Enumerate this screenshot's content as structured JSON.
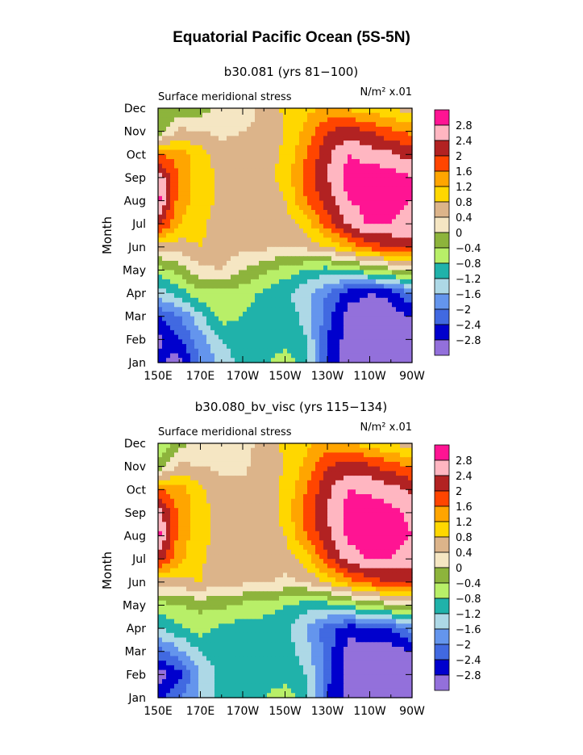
{
  "title": "Equatorial Pacific Ocean (5S-5N)",
  "chart_data": [
    {
      "type": "heatmap",
      "subtitle": "b30.081 (yrs 81−100)",
      "left_label": "Surface meridional stress",
      "units_label": "N/m² x.01",
      "ylabel": "Month",
      "x_ticks": [
        "150E",
        "170E",
        "170W",
        "150W",
        "130W",
        "110W",
        "90W"
      ],
      "x_range": [
        150,
        270
      ],
      "y_ticks": [
        "Jan",
        "Feb",
        "Mar",
        "Apr",
        "May",
        "Jun",
        "Jul",
        "Aug",
        "Sep",
        "Oct",
        "Nov",
        "Dec"
      ],
      "color_levels": [
        "2.8",
        "2.4",
        "2",
        "1.6",
        "1.2",
        "0.8",
        "0.4",
        "0",
        "−0.4",
        "−0.8",
        "−1.2",
        "−1.6",
        "−2",
        "−2.4",
        "−2.8"
      ],
      "x": [
        150,
        160,
        170,
        180,
        190,
        200,
        210,
        220,
        230,
        240,
        250,
        260,
        270
      ],
      "months": [
        1,
        2,
        3,
        4,
        5,
        6,
        7,
        8,
        9,
        10,
        11,
        12
      ],
      "values": [
        [
          -2.7,
          -3.0,
          -2.0,
          -1.5,
          -1.0,
          -0.9,
          -0.6,
          -1.0,
          -2.5,
          -3.0,
          -3.0,
          -3.0,
          -3.0
        ],
        [
          -2.9,
          -2.4,
          -1.8,
          -1.2,
          -1.0,
          -1.0,
          -1.0,
          -1.2,
          -2.4,
          -3.0,
          -3.0,
          -3.0,
          -3.0
        ],
        [
          -2.4,
          -2.0,
          -1.3,
          -0.6,
          -0.8,
          -1.0,
          -1.0,
          -1.3,
          -2.2,
          -3.0,
          -3.0,
          -3.0,
          -2.8
        ],
        [
          -1.4,
          -1.0,
          -0.5,
          -0.5,
          -0.6,
          -0.9,
          -1.1,
          -1.5,
          -2.0,
          -2.6,
          -2.8,
          -2.7,
          -2.0
        ],
        [
          -0.6,
          -0.2,
          0.3,
          0.4,
          0.0,
          -0.3,
          -0.6,
          -0.8,
          -1.0,
          -0.8,
          -0.5,
          -0.2,
          0.2
        ],
        [
          0.5,
          0.6,
          0.8,
          0.6,
          0.5,
          0.5,
          0.4,
          0.5,
          0.8,
          1.3,
          1.8,
          2.0,
          2.2
        ],
        [
          2.2,
          1.2,
          0.9,
          0.6,
          0.5,
          0.5,
          0.6,
          1.0,
          1.8,
          2.5,
          2.9,
          2.8,
          2.6
        ],
        [
          3.0,
          1.4,
          1.0,
          0.7,
          0.5,
          0.6,
          0.8,
          1.6,
          2.2,
          2.8,
          2.9,
          3.0,
          2.8
        ],
        [
          2.8,
          1.5,
          1.0,
          0.7,
          0.6,
          0.7,
          0.9,
          1.8,
          2.4,
          3.0,
          3.1,
          3.0,
          2.8
        ],
        [
          1.6,
          1.4,
          1.0,
          0.6,
          0.5,
          0.6,
          0.9,
          1.6,
          2.3,
          2.8,
          2.6,
          2.5,
          2.2
        ],
        [
          -0.3,
          0.5,
          0.4,
          0.3,
          0.4,
          0.5,
          0.8,
          1.3,
          2.0,
          2.2,
          2.0,
          1.7,
          1.5
        ],
        [
          -0.2,
          -0.3,
          -0.2,
          0.1,
          0.2,
          0.5,
          0.9,
          1.1,
          1.2,
          1.1,
          1.0,
          0.8,
          0.6
        ]
      ],
      "colors": {
        "-3": "#9370db",
        "-2.8": "#0000cd",
        "-2.4": "#4169e1",
        "-2": "#6495ed",
        "-1.6": "#add8e6",
        "-1.2": "#20b2aa",
        "-0.8": "#b8ef68",
        "-0.4": "#8db43c",
        "0": "#f5e6c3",
        "0.4": "#dcb48a",
        "0.8": "#ffd700",
        "1.2": "#ffa500",
        "1.6": "#ff4500",
        "2": "#b22222",
        "2.4": "#ffb6c1",
        "2.8": "#ff1493"
      }
    },
    {
      "type": "heatmap",
      "subtitle": "b30.080_bv_visc (yrs 115−134)",
      "left_label": "Surface meridional stress",
      "units_label": "N/m² x.01",
      "ylabel": "Month",
      "x_ticks": [
        "150E",
        "170E",
        "170W",
        "150W",
        "130W",
        "110W",
        "90W"
      ],
      "x_range": [
        150,
        270
      ],
      "y_ticks": [
        "Jan",
        "Feb",
        "Mar",
        "Apr",
        "May",
        "Jun",
        "Jul",
        "Aug",
        "Sep",
        "Oct",
        "Nov",
        "Dec"
      ],
      "color_levels": [
        "2.8",
        "2.4",
        "2",
        "1.6",
        "1.2",
        "0.8",
        "0.4",
        "0",
        "−0.4",
        "−0.8",
        "−1.2",
        "−1.6",
        "−2",
        "−2.4",
        "−2.8"
      ],
      "x": [
        150,
        160,
        170,
        180,
        190,
        200,
        210,
        220,
        230,
        240,
        250,
        260,
        270
      ],
      "months": [
        1,
        2,
        3,
        4,
        5,
        6,
        7,
        8,
        9,
        10,
        11,
        12
      ],
      "values": [
        [
          -2.6,
          -2.0,
          -1.5,
          -1.0,
          -0.9,
          -0.8,
          -0.6,
          -1.0,
          -2.4,
          -3.0,
          -3.0,
          -3.0,
          -3.0
        ],
        [
          -3.0,
          -2.6,
          -1.6,
          -1.0,
          -0.9,
          -0.9,
          -1.0,
          -1.2,
          -2.3,
          -3.0,
          -3.0,
          -3.0,
          -3.0
        ],
        [
          -2.2,
          -1.7,
          -1.2,
          -1.0,
          -1.0,
          -1.0,
          -1.0,
          -1.4,
          -2.2,
          -3.0,
          -3.0,
          -3.0,
          -2.8
        ],
        [
          -1.2,
          -0.9,
          -0.6,
          -0.9,
          -1.0,
          -1.0,
          -1.1,
          -1.6,
          -2.2,
          -2.6,
          -2.6,
          -2.4,
          -1.8
        ],
        [
          -0.6,
          -0.4,
          -0.3,
          -0.3,
          -0.5,
          -0.6,
          -0.8,
          -1.0,
          -1.0,
          -0.7,
          -0.4,
          -0.1,
          0.2
        ],
        [
          0.6,
          0.7,
          0.8,
          0.5,
          0.5,
          0.5,
          0.3,
          0.4,
          0.9,
          1.4,
          1.8,
          2.0,
          2.2
        ],
        [
          2.2,
          1.3,
          0.9,
          0.5,
          0.5,
          0.5,
          0.6,
          1.0,
          1.9,
          2.6,
          2.9,
          2.8,
          2.5
        ],
        [
          3.0,
          1.4,
          1.0,
          0.6,
          0.5,
          0.6,
          0.8,
          1.6,
          2.3,
          2.9,
          2.9,
          3.0,
          2.8
        ],
        [
          2.6,
          1.5,
          1.0,
          0.6,
          0.5,
          0.6,
          0.9,
          1.8,
          2.4,
          3.0,
          3.1,
          2.9,
          2.7
        ],
        [
          1.6,
          1.4,
          0.9,
          0.5,
          0.5,
          0.6,
          0.9,
          1.6,
          2.3,
          2.8,
          2.7,
          2.6,
          2.3
        ],
        [
          -0.3,
          0.5,
          0.4,
          0.3,
          0.3,
          0.6,
          0.8,
          1.3,
          2.0,
          2.2,
          2.1,
          1.8,
          1.6
        ],
        [
          -0.8,
          -0.2,
          0.2,
          0.3,
          0.3,
          0.5,
          0.9,
          1.1,
          1.3,
          1.2,
          1.0,
          0.8,
          0.6
        ]
      ],
      "colors": {
        "-3": "#9370db",
        "-2.8": "#0000cd",
        "-2.4": "#4169e1",
        "-2": "#6495ed",
        "-1.6": "#add8e6",
        "-1.2": "#20b2aa",
        "-0.8": "#b8ef68",
        "-0.4": "#8db43c",
        "0": "#f5e6c3",
        "0.4": "#dcb48a",
        "0.8": "#ffd700",
        "1.2": "#ffa500",
        "1.6": "#ff4500",
        "2": "#b22222",
        "2.4": "#ffb6c1",
        "2.8": "#ff1493"
      }
    }
  ]
}
